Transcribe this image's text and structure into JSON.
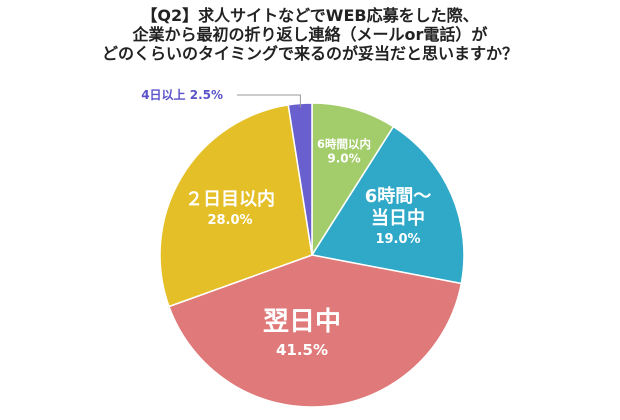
{
  "chart_data": {
    "type": "pie",
    "title_lines": [
      "【Q2】求人サイトなどでWEB応募をした際、",
      "企業から最初の折り返し連絡（メールor電話）が",
      "どのくらいのタイミングで来るのが妥当だと思いますか？"
    ],
    "slices": [
      {
        "name_lines": [
          "6時間以内"
        ],
        "value": 9.0,
        "value_label": "9.0%",
        "color": "#a3cc6b",
        "label_color": "#ffffff"
      },
      {
        "name_lines": [
          "6時間〜",
          "当日中"
        ],
        "value": 19.0,
        "value_label": "19.0%",
        "color": "#30a9c8",
        "label_color": "#ffffff"
      },
      {
        "name_lines": [
          "翌日中"
        ],
        "value": 41.5,
        "value_label": "41.5%",
        "color": "#e07a7a",
        "label_color": "#ffffff"
      },
      {
        "name_lines": [
          "２日目以内"
        ],
        "value": 28.0,
        "value_label": "28.0%",
        "color": "#e5bf27",
        "label_color": "#ffffff"
      },
      {
        "name_lines": [
          "4日以上"
        ],
        "value": 2.5,
        "value_label": "2.5%",
        "color": "#6a5fcf",
        "label_color": "#5b53c8"
      }
    ]
  }
}
